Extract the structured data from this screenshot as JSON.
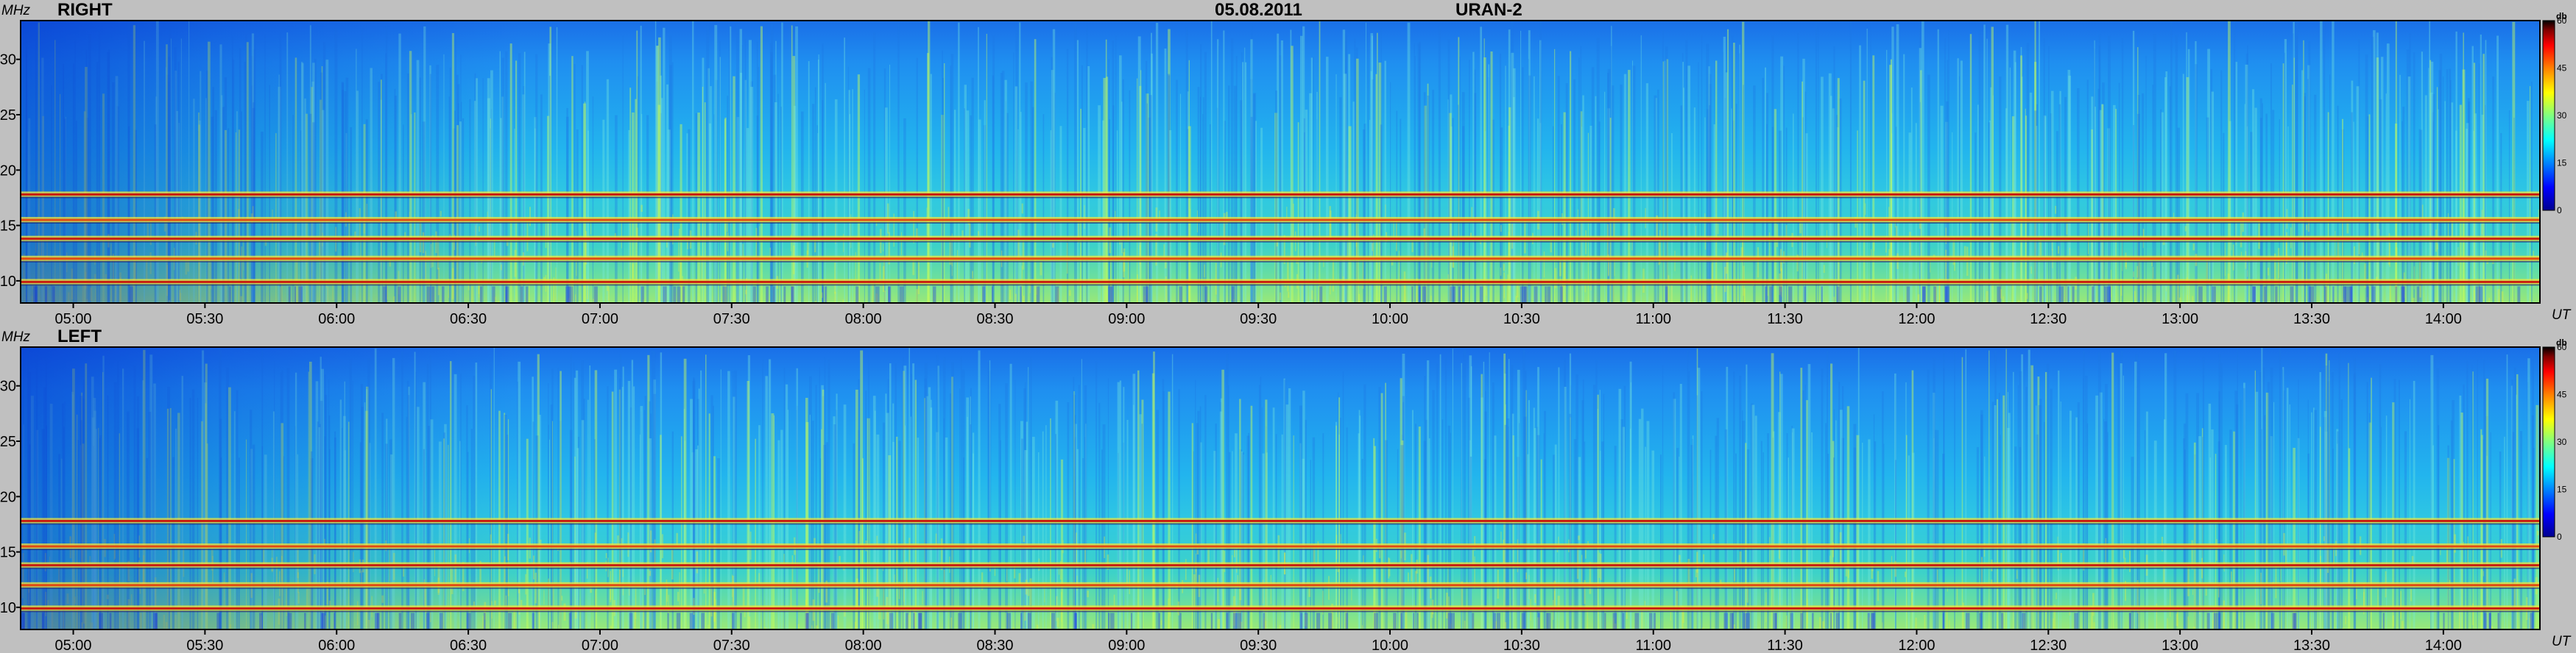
{
  "header": {
    "date": "05.08.2011",
    "instrument": "URAN-2"
  },
  "chart_data": [
    {
      "type": "heatmap",
      "title": "RIGHT",
      "xlabel": "UT",
      "ylabel": "MHz",
      "x_ticks": [
        "05:00",
        "05:30",
        "06:00",
        "06:30",
        "07:00",
        "07:30",
        "08:00",
        "08:30",
        "09:00",
        "09:30",
        "10:00",
        "10:30",
        "11:00",
        "11:30",
        "12:00",
        "12:30",
        "13:00",
        "13:30",
        "14:00"
      ],
      "x_range": [
        "04:48",
        "14:22"
      ],
      "y_ticks": [
        10,
        15,
        20,
        25,
        30
      ],
      "ylim": [
        8,
        33.5
      ],
      "colorbar": {
        "unit": "db",
        "ticks": [
          0,
          15,
          30,
          45,
          60
        ],
        "range": [
          0,
          60
        ]
      },
      "interference_bands_mhz": [
        9.9,
        12.0,
        13.8,
        15.5,
        17.8
      ]
    },
    {
      "type": "heatmap",
      "title": "LEFT",
      "xlabel": "UT",
      "ylabel": "MHz",
      "x_ticks": [
        "05:00",
        "05:30",
        "06:00",
        "06:30",
        "07:00",
        "07:30",
        "08:00",
        "08:30",
        "09:00",
        "09:30",
        "10:00",
        "10:30",
        "11:00",
        "11:30",
        "12:00",
        "12:30",
        "13:00",
        "13:30",
        "14:00"
      ],
      "x_range": [
        "04:48",
        "14:22"
      ],
      "y_ticks": [
        10,
        15,
        20,
        25,
        30
      ],
      "ylim": [
        8,
        33.5
      ],
      "colorbar": {
        "unit": "db",
        "ticks": [
          0,
          15,
          30,
          45,
          60
        ],
        "range": [
          0,
          60
        ]
      },
      "interference_bands_mhz": [
        9.9,
        12.0,
        13.8,
        15.5,
        17.8
      ]
    }
  ]
}
